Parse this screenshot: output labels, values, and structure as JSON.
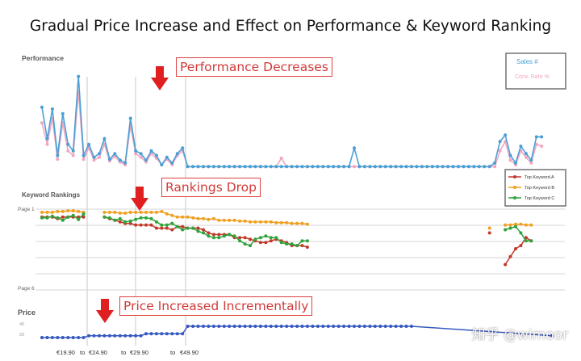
{
  "title": "Gradual Price Increase and Effect on Performance & Keyword Ranking",
  "callouts": {
    "performance": "Performance Decreases",
    "rankings": "Rankings Drop",
    "price": "Price Increased Incrementally"
  },
  "watermark": "知乎 @wimoor",
  "colors": {
    "sales": "#4a9fd4",
    "conv": "#f2a6c0",
    "kwA": "#c0392b",
    "kwB": "#f0a020",
    "kwC": "#2ea33a",
    "price": "#3558c0",
    "callout": "#d23a3a",
    "arrow": "#e02020"
  },
  "chart_data": [
    {
      "type": "line",
      "title": "Performance",
      "legend": [
        "Sales #",
        "Conv. Rate %"
      ],
      "legend_position": "top-right",
      "series": [
        {
          "name": "Sales #",
          "values": [
            0.62,
            0.28,
            0.6,
            0.1,
            0.55,
            0.22,
            0.15,
            0.95,
            0.1,
            0.22,
            0.08,
            0.12,
            0.28,
            0.06,
            0.12,
            0.05,
            0.02,
            0.5,
            0.15,
            0.12,
            0.05,
            0.15,
            0.1,
            0.0,
            0.08,
            0.02,
            0.12,
            0.18,
            -0.02,
            -0.02,
            -0.02,
            -0.02,
            -0.02,
            -0.02,
            -0.02,
            -0.02,
            -0.02,
            -0.02,
            -0.02,
            -0.02,
            -0.02,
            -0.02,
            -0.02,
            -0.02,
            -0.02,
            -0.02,
            -0.02,
            -0.02,
            -0.02,
            -0.02,
            -0.02,
            -0.02,
            -0.02,
            -0.02,
            -0.02,
            -0.02,
            -0.02,
            -0.02,
            -0.02,
            -0.02,
            0.18,
            -0.02,
            -0.02,
            -0.02,
            -0.02,
            -0.02,
            -0.02,
            -0.02,
            -0.02,
            -0.02,
            -0.02,
            -0.02,
            -0.02,
            -0.02,
            -0.02,
            -0.02,
            -0.02,
            -0.02,
            -0.02,
            -0.02,
            -0.02,
            -0.02,
            -0.02,
            -0.02,
            -0.02,
            -0.02,
            -0.02,
            0.02,
            0.25,
            0.32,
            0.1,
            0.02,
            0.2,
            0.12,
            0.05,
            0.3,
            0.3
          ]
        },
        {
          "name": "Conv. Rate %",
          "values": [
            0.45,
            0.22,
            0.5,
            0.06,
            0.45,
            0.15,
            0.1,
            0.78,
            0.06,
            0.18,
            0.05,
            0.08,
            0.22,
            0.04,
            0.09,
            0.03,
            0.0,
            0.42,
            0.12,
            0.08,
            0.03,
            0.12,
            0.07,
            0.0,
            0.06,
            0.0,
            0.1,
            0.15,
            -0.02,
            -0.02,
            -0.02,
            -0.02,
            -0.02,
            -0.02,
            -0.02,
            -0.02,
            -0.02,
            -0.02,
            -0.02,
            -0.02,
            -0.02,
            -0.02,
            -0.02,
            -0.02,
            -0.02,
            -0.02,
            0.07,
            -0.02,
            -0.02,
            -0.02,
            -0.02,
            -0.02,
            -0.02,
            -0.02,
            -0.02,
            -0.02,
            -0.02,
            -0.02,
            -0.02,
            -0.02,
            -0.02,
            -0.02,
            -0.02,
            -0.02,
            -0.02,
            -0.02,
            -0.02,
            -0.02,
            -0.02,
            -0.02,
            -0.02,
            -0.02,
            -0.02,
            -0.02,
            -0.02,
            -0.02,
            -0.02,
            -0.02,
            -0.02,
            -0.02,
            -0.02,
            -0.02,
            -0.02,
            -0.02,
            -0.02,
            -0.02,
            -0.02,
            -0.02,
            0.15,
            0.25,
            0.05,
            0.0,
            0.15,
            0.08,
            0.02,
            0.22,
            0.2
          ]
        }
      ]
    },
    {
      "type": "line",
      "title": "Keyword Rankings",
      "y_labels": [
        "Page 1",
        "Page 6"
      ],
      "legend": [
        "Top Keyword A",
        "Top Keyword B",
        "Top Keyword C"
      ],
      "legend_position": "right",
      "series": [
        {
          "name": "Top Keyword A",
          "segments": [
            {
              "start": 0,
              "values": [
                1.5,
                1.5,
                1.5,
                1.6,
                1.5,
                1.5,
                1.5,
                1.5,
                1.5
              ]
            },
            {
              "start": 12,
              "values": [
                1.5,
                1.6,
                1.7,
                1.8,
                1.9,
                1.9,
                2.0,
                2.0,
                2.0,
                2.0,
                2.2,
                2.2,
                2.2,
                2.3,
                2.1,
                2.1,
                2.2,
                2.2,
                2.2,
                2.3,
                2.5,
                2.6,
                2.6,
                2.6,
                2.6,
                2.8,
                2.8,
                2.8,
                2.9,
                3.0,
                3.1,
                3.1,
                3.0,
                2.9,
                3.0,
                3.1,
                3.3,
                3.3,
                3.3,
                3.4
              ]
            },
            {
              "start": 86,
              "values": [
                2.5
              ]
            },
            {
              "start": 89,
              "values": [
                4.5,
                4.0,
                3.5,
                3.3,
                2.8,
                3.0
              ]
            }
          ]
        },
        {
          "name": "Top Keyword B",
          "segments": [
            {
              "start": 0,
              "values": [
                1.2,
                1.2,
                1.2,
                1.15,
                1.15,
                1.1,
                1.1,
                1.15,
                1.2
              ]
            },
            {
              "start": 12,
              "values": [
                1.2,
                1.2,
                1.2,
                1.25,
                1.25,
                1.2,
                1.2,
                1.2,
                1.2,
                1.2,
                1.2,
                1.15,
                1.3,
                1.4,
                1.5,
                1.5,
                1.5,
                1.55,
                1.6,
                1.6,
                1.65,
                1.6,
                1.7,
                1.7,
                1.7,
                1.7,
                1.75,
                1.75,
                1.8,
                1.8,
                1.8,
                1.8,
                1.8,
                1.85,
                1.85,
                1.85,
                1.9,
                1.9,
                1.9,
                1.95
              ]
            },
            {
              "start": 86,
              "values": [
                2.2
              ]
            },
            {
              "start": 89,
              "values": [
                2.0,
                2.0,
                1.95,
                1.95,
                2.0,
                2.0
              ]
            }
          ]
        },
        {
          "name": "Top Keyword C",
          "segments": [
            {
              "start": 0,
              "values": [
                1.55,
                1.55,
                1.45,
                1.55,
                1.7,
                1.5,
                1.4,
                1.65,
                1.3
              ]
            },
            {
              "start": 12,
              "values": [
                1.5,
                1.55,
                1.7,
                1.6,
                1.8,
                1.75,
                1.65,
                1.55,
                1.55,
                1.6,
                1.8,
                2.0,
                2.0,
                1.9,
                2.1,
                2.3,
                2.2,
                2.2,
                2.4,
                2.5,
                2.7,
                2.8,
                2.8,
                2.7,
                2.6,
                2.7,
                3.0,
                3.2,
                3.3,
                2.9,
                2.8,
                2.7,
                2.8,
                2.8,
                3.1,
                3.2,
                3.2,
                3.3,
                3.0,
                3.0
              ]
            },
            {
              "start": 89,
              "values": [
                2.3,
                2.2,
                2.1,
                2.5,
                3.0,
                3.0
              ]
            }
          ]
        }
      ]
    },
    {
      "type": "line",
      "title": "Price",
      "y_labels": [
        "40",
        "20"
      ],
      "x_labels": [
        "€19.90",
        "to",
        "€24.90",
        "to",
        "€29.90",
        "to",
        "€49.90"
      ],
      "series": [
        {
          "name": "Price",
          "segments": [
            {
              "start": 0,
              "values": [
                19.9,
                19.9,
                19.9,
                19.9,
                19.9,
                19.9,
                19.9,
                19.9,
                19.9,
                24.9,
                24.9,
                24.9,
                24.9,
                24.9,
                24.9,
                24.9,
                24.9,
                24.9,
                24.9,
                24.9,
                29.9,
                29.9,
                29.9,
                29.9,
                29.9,
                29.9,
                29.9,
                29.9,
                49.9,
                49.9,
                49.9,
                49.9,
                49.9,
                49.9,
                49.9,
                49.9,
                49.9,
                49.9,
                49.9,
                49.9,
                49.9,
                49.9,
                49.9,
                49.9,
                49.9,
                49.9,
                49.9,
                49.9,
                49.9,
                49.9,
                49.9,
                49.9,
                49.9,
                49.9,
                49.9,
                49.9,
                49.9,
                49.9,
                49.9,
                49.9,
                49.9,
                49.9,
                49.9,
                49.9,
                49.9,
                49.9,
                49.9,
                49.9,
                49.9,
                49.9,
                49.9,
                49.9
              ]
            },
            {
              "start": 98,
              "values": [
                24.9
              ]
            }
          ]
        }
      ]
    }
  ]
}
